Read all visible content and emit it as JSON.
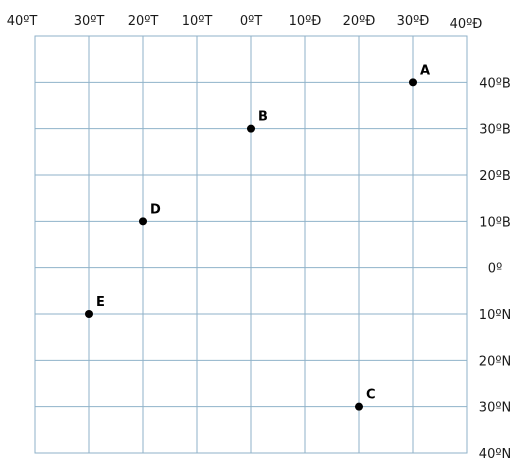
{
  "colors": {
    "grid": "#8fb2c9",
    "point": "#000000",
    "text": "#1a1a1a"
  },
  "diagram": {
    "type": "coordinate-grid",
    "longitude_labels": [
      {
        "value": -40,
        "text": "40ºT"
      },
      {
        "value": -30,
        "text": "30ºT"
      },
      {
        "value": -20,
        "text": "20ºT"
      },
      {
        "value": -10,
        "text": "10ºT"
      },
      {
        "value": 0,
        "text": "0ºT"
      },
      {
        "value": 10,
        "text": "10ºĐ"
      },
      {
        "value": 20,
        "text": "20ºĐ"
      },
      {
        "value": 30,
        "text": "30ºĐ"
      },
      {
        "value": 40,
        "text": "40ºĐ"
      }
    ],
    "latitude_labels": [
      {
        "value": 40,
        "text": "40ºB"
      },
      {
        "value": 30,
        "text": "30ºB"
      },
      {
        "value": 20,
        "text": "20ºB"
      },
      {
        "value": 10,
        "text": "10ºB"
      },
      {
        "value": 0,
        "text": "0º"
      },
      {
        "value": -10,
        "text": "10ºN"
      },
      {
        "value": -20,
        "text": "20ºN"
      },
      {
        "value": -30,
        "text": "30ºN"
      },
      {
        "value": -40,
        "text": "40ºN"
      }
    ],
    "points": [
      {
        "label": "A",
        "lon": 30,
        "lat": 40
      },
      {
        "label": "B",
        "lon": 0,
        "lat": 30
      },
      {
        "label": "C",
        "lon": 20,
        "lat": -30
      },
      {
        "label": "D",
        "lon": -20,
        "lat": 10
      },
      {
        "label": "E",
        "lon": -30,
        "lat": -10
      }
    ]
  }
}
